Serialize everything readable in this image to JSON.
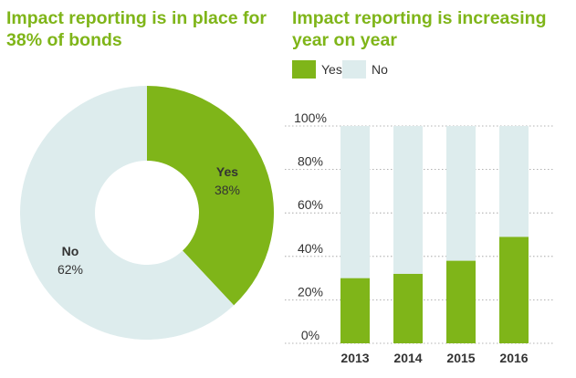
{
  "colors": {
    "yes": "#7fb519",
    "no": "#ddeced",
    "title": "#7fb519",
    "text": "#333333",
    "grid": "#9a9a9a"
  },
  "chart_data": [
    {
      "type": "pie",
      "title": "Impact reporting is in place for 38% of bonds",
      "slices": [
        {
          "label": "Yes",
          "value": 38,
          "value_label": "38%"
        },
        {
          "label": "No",
          "value": 62,
          "value_label": "62%"
        }
      ]
    },
    {
      "type": "bar",
      "stacked": true,
      "title": "Impact reporting is increasing year on year",
      "categories": [
        "2013",
        "2014",
        "2015",
        "2016"
      ],
      "series": [
        {
          "name": "Yes",
          "values": [
            30,
            32,
            38,
            49
          ]
        },
        {
          "name": "No",
          "values": [
            70,
            68,
            62,
            51
          ]
        }
      ],
      "ylim": [
        0,
        100
      ],
      "yticks": [
        "0%",
        "20%",
        "40%",
        "60%",
        "80%",
        "100%"
      ],
      "grid": true,
      "legend_position": "top-left"
    }
  ]
}
